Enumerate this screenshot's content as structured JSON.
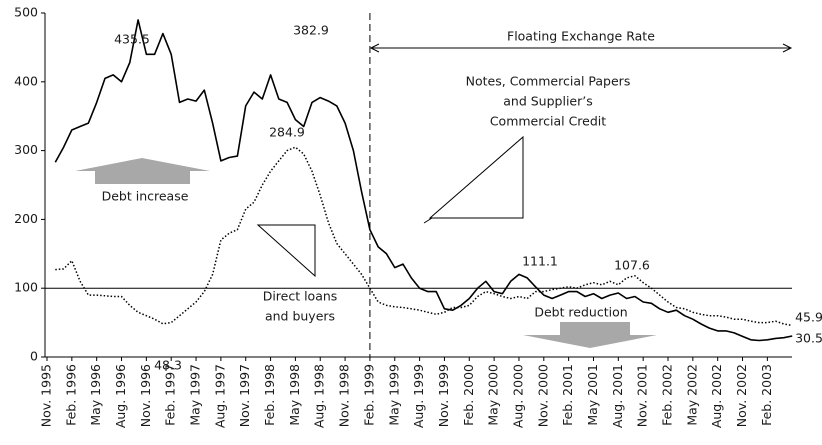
{
  "chart_data": {
    "type": "line",
    "categories": [
      "Nov. 1995",
      null,
      null,
      "Feb. 1996",
      null,
      null,
      "May 1996",
      null,
      null,
      "Aug. 1996",
      null,
      null,
      "Nov. 1996",
      null,
      null,
      "Feb. 1997",
      null,
      null,
      "May 1997",
      null,
      null,
      "Aug. 1997",
      null,
      null,
      "Nov. 1997",
      null,
      null,
      "Feb. 1998",
      null,
      null,
      "May 1998",
      null,
      null,
      "Aug. 1998",
      null,
      null,
      "Nov. 1998",
      null,
      null,
      "Feb. 1999",
      null,
      null,
      "May 1999",
      null,
      null,
      "Aug. 1999",
      null,
      null,
      "Nov. 1999",
      null,
      null,
      "Feb. 2000",
      null,
      null,
      "May 2000",
      null,
      null,
      "Aug. 2000",
      null,
      null,
      "Nov. 2000",
      null,
      null,
      "Feb. 2001",
      null,
      null,
      "May 2001",
      null,
      null,
      "Aug. 2001",
      null,
      null,
      "Nov. 2001",
      null,
      null,
      "Feb. 2002",
      null,
      null,
      "May 2002",
      null,
      null,
      "Aug. 2002",
      null,
      null,
      "Nov. 2002",
      null,
      null,
      "Feb. 2003",
      null,
      null,
      null
    ],
    "series": [
      {
        "color": "#000000",
        "style": "solid",
        "values": [
          null,
          283,
          305,
          330,
          335,
          340,
          370,
          405,
          410,
          400,
          428,
          490,
          440,
          440,
          470,
          440,
          370,
          375,
          372,
          388,
          340,
          285,
          290,
          292,
          365,
          385,
          375,
          410,
          375,
          370,
          345,
          335,
          370,
          377,
          372,
          365,
          340,
          300,
          240,
          185,
          160,
          150,
          130,
          135,
          115,
          100,
          95,
          95,
          70,
          68,
          75,
          85,
          100,
          110,
          95,
          92,
          110,
          120,
          115,
          102,
          90,
          85,
          90,
          95,
          95,
          88,
          92,
          85,
          90,
          93,
          85,
          88,
          80,
          78,
          70,
          65,
          68,
          60,
          55,
          48,
          42,
          38,
          38,
          35,
          30,
          25,
          24,
          25,
          27,
          28,
          30.5
        ]
      },
      {
        "color": "#000000",
        "style": "dotted",
        "values": [
          null,
          127,
          128,
          140,
          110,
          90,
          90,
          89,
          88,
          88,
          75,
          65,
          60,
          55,
          48.3,
          50,
          60,
          70,
          80,
          95,
          120,
          170,
          180,
          185,
          215,
          225,
          250,
          270,
          285,
          300,
          305,
          295,
          270,
          235,
          195,
          165,
          150,
          135,
          120,
          100,
          80,
          75,
          73,
          72,
          70,
          68,
          65,
          62,
          65,
          72,
          72,
          75,
          88,
          95,
          92,
          88,
          85,
          88,
          85,
          95,
          95,
          98,
          100,
          102,
          100,
          105,
          108,
          105,
          110,
          105,
          115,
          118,
          108,
          100,
          90,
          80,
          72,
          70,
          65,
          62,
          60,
          60,
          58,
          55,
          55,
          52,
          50,
          50,
          52,
          48,
          45.9
        ]
      }
    ],
    "ylim": [
      0,
      500
    ],
    "yticks": [
      0,
      100,
      200,
      300,
      400,
      500
    ],
    "hline": 100,
    "vline": "Feb. 1999",
    "period_label": "Floating Exchange Rate",
    "annotations": [
      "435.5",
      "382.9",
      "284.9",
      "48.3",
      "111.1",
      "107.6",
      "45.9",
      "30.5",
      "Notes, Commercial Papers",
      "and Supplier’s",
      "Commercial Credit",
      "Debt increase",
      "Debt reduction",
      "Direct loans",
      "and buyers"
    ]
  }
}
